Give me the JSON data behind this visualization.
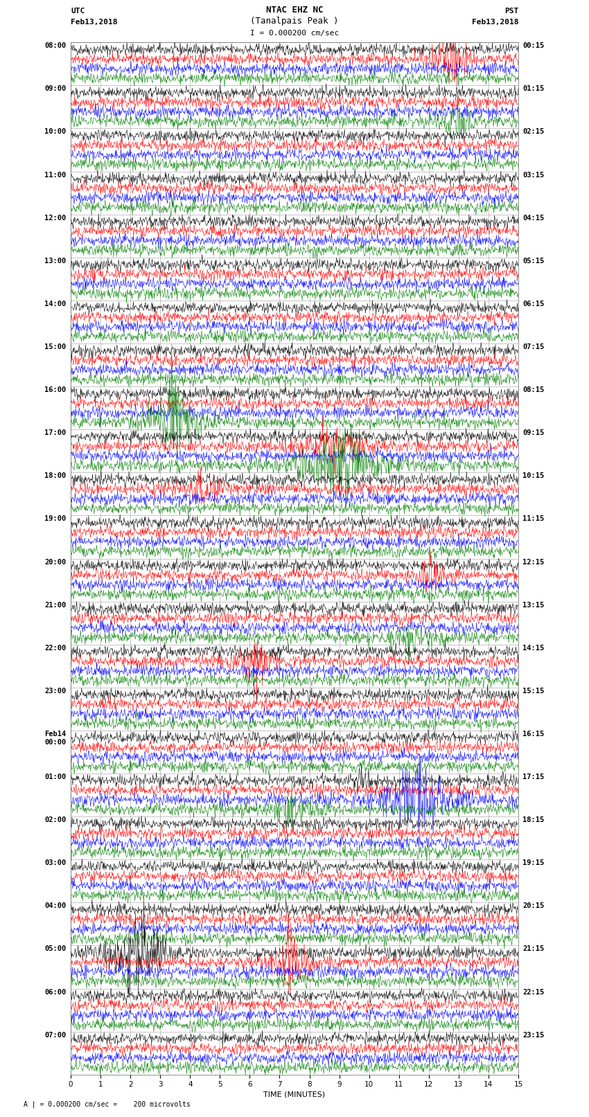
{
  "title_line1": "NTAC EHZ NC",
  "title_line2": "(Tanalpais Peak )",
  "scale_label": "I = 0.000200 cm/sec",
  "left_label_top": "UTC",
  "left_label_date": "Feb13,2018",
  "right_label_top": "PST",
  "right_label_date": "Feb13,2018",
  "footer_label": "A | = 0.000200 cm/sec =    200 microvolts",
  "xlabel": "TIME (MINUTES)",
  "xlim": [
    0,
    15
  ],
  "xticks": [
    0,
    1,
    2,
    3,
    4,
    5,
    6,
    7,
    8,
    9,
    10,
    11,
    12,
    13,
    14,
    15
  ],
  "background_color": "#ffffff",
  "trace_colors": [
    "black",
    "red",
    "blue",
    "green"
  ],
  "line_width": 0.4,
  "num_time_slots": 24,
  "traces_per_slot": 4,
  "samples_per_row": 900,
  "noise_scale": 0.3,
  "event_prob": 0.12,
  "event_amp_min": 1.0,
  "event_amp_max": 4.0,
  "fig_width": 8.5,
  "fig_height": 16.13,
  "left_times": [
    "08:00",
    "09:00",
    "10:00",
    "11:00",
    "12:00",
    "13:00",
    "14:00",
    "15:00",
    "16:00",
    "17:00",
    "18:00",
    "19:00",
    "20:00",
    "21:00",
    "22:00",
    "23:00",
    "Feb14\n00:00",
    "01:00",
    "02:00",
    "03:00",
    "04:00",
    "05:00",
    "06:00",
    "07:00"
  ],
  "right_times": [
    "00:15",
    "01:15",
    "02:15",
    "03:15",
    "04:15",
    "05:15",
    "06:15",
    "07:15",
    "08:15",
    "09:15",
    "10:15",
    "11:15",
    "12:15",
    "13:15",
    "14:15",
    "15:15",
    "16:15",
    "17:15",
    "18:15",
    "19:15",
    "20:15",
    "21:15",
    "22:15",
    "23:15"
  ],
  "grid_color": "#999999",
  "grid_lw": 0.4,
  "tick_label_fontsize": 7.5,
  "title_fontsize": 9,
  "label_fontsize": 8,
  "trace_sep": 1.0,
  "slot_sep": 0.5
}
